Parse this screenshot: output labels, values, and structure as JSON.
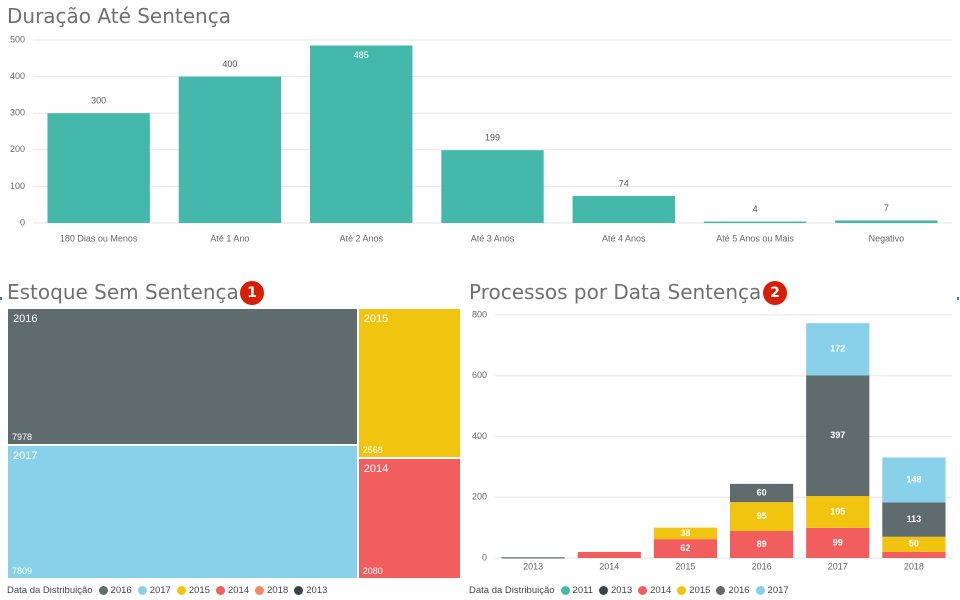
{
  "colors": {
    "teal": "#45b8ac",
    "dark_gray": "#5f6b6d",
    "light_blue": "#89d0ea",
    "yellow": "#f1c40f",
    "red": "#f25e5e",
    "orange": "#f6895b",
    "charcoal": "#374649",
    "badge_red": "#d81e05"
  },
  "panels": {
    "top": {
      "title": "Duração Até Sentença"
    },
    "bottom_left": {
      "title": "Estoque Sem Sentença",
      "badge": "1"
    },
    "bottom_right": {
      "title": "Processos por Data Sentença",
      "badge": "2"
    }
  },
  "chart_data": [
    {
      "type": "bar",
      "title": "Duração Até Sentença",
      "categories": [
        "180 Dias ou Menos",
        "Até 1 Ano",
        "Até 2 Anos",
        "Até 3 Anos",
        "Até 4 Anos",
        "Até 5 Anos ou Mais",
        "Negativo"
      ],
      "values": [
        300,
        400,
        485,
        199,
        74,
        4,
        7
      ],
      "data_labels": [
        "300",
        "400",
        "485",
        "199",
        "74",
        "4",
        "7"
      ],
      "ylim": [
        0,
        500
      ],
      "yticks": [
        0,
        100,
        200,
        300,
        400,
        500
      ],
      "ytick_labels": [
        "0",
        "100",
        "200",
        "300",
        "400",
        "500"
      ],
      "color": "#45b8ac",
      "grid": true
    },
    {
      "type": "treemap",
      "title": "Estoque Sem Sentença",
      "legend_title": "Data da Distribuição",
      "legend": [
        {
          "name": "2016",
          "color": "#5f6b6d"
        },
        {
          "name": "2017",
          "color": "#89d0ea"
        },
        {
          "name": "2015",
          "color": "#f1c40f"
        },
        {
          "name": "2014",
          "color": "#f25e5e"
        },
        {
          "name": "2018",
          "color": "#f6895b"
        },
        {
          "name": "2013",
          "color": "#374649"
        }
      ],
      "items": [
        {
          "name": "2016",
          "value": 7978,
          "value_label": "7978",
          "color": "#5f6b6d"
        },
        {
          "name": "2017",
          "value": 7809,
          "value_label": "7809",
          "color": "#89d0ea"
        },
        {
          "name": "2015",
          "value": 2568,
          "value_label": "2568",
          "color": "#f1c40f"
        },
        {
          "name": "2014",
          "value": 2080,
          "value_label": "2080",
          "color": "#f25e5e"
        }
      ]
    },
    {
      "type": "bar",
      "stacked": true,
      "title": "Processos por Data Sentença",
      "categories": [
        "2013",
        "2014",
        "2015",
        "2016",
        "2017",
        "2018"
      ],
      "ylim": [
        0,
        800
      ],
      "yticks": [
        0,
        200,
        400,
        600,
        800
      ],
      "ytick_labels": [
        "0",
        "200",
        "400",
        "600",
        "800"
      ],
      "legend_title": "Data da Distribuição",
      "legend": [
        {
          "name": "2011",
          "color": "#45b8ac"
        },
        {
          "name": "2013",
          "color": "#374649"
        },
        {
          "name": "2014",
          "color": "#f25e5e"
        },
        {
          "name": "2015",
          "color": "#f1c40f"
        },
        {
          "name": "2016",
          "color": "#5f6b6d"
        },
        {
          "name": "2017",
          "color": "#89d0ea"
        }
      ],
      "series": [
        {
          "name": "2011",
          "color": "#45b8ac",
          "values": [
            0,
            0,
            0,
            0,
            0,
            0
          ]
        },
        {
          "name": "2013",
          "color": "#374649",
          "values": [
            2,
            0,
            0,
            0,
            0,
            0
          ]
        },
        {
          "name": "2014",
          "color": "#f25e5e",
          "values": [
            0,
            20,
            62,
            89,
            99,
            20
          ],
          "labels": [
            "",
            "",
            "62",
            "89",
            "99",
            ""
          ]
        },
        {
          "name": "2015",
          "color": "#f1c40f",
          "values": [
            0,
            0,
            38,
            95,
            105,
            50
          ],
          "labels": [
            "",
            "",
            "38",
            "95",
            "105",
            "50"
          ]
        },
        {
          "name": "2016",
          "color": "#5f6b6d",
          "values": [
            0,
            0,
            0,
            60,
            397,
            113
          ],
          "labels": [
            "",
            "",
            "",
            "60",
            "397",
            "113"
          ]
        },
        {
          "name": "2017",
          "color": "#89d0ea",
          "values": [
            0,
            0,
            0,
            0,
            172,
            148
          ],
          "labels": [
            "",
            "",
            "",
            "",
            "172",
            "148"
          ]
        }
      ]
    }
  ]
}
